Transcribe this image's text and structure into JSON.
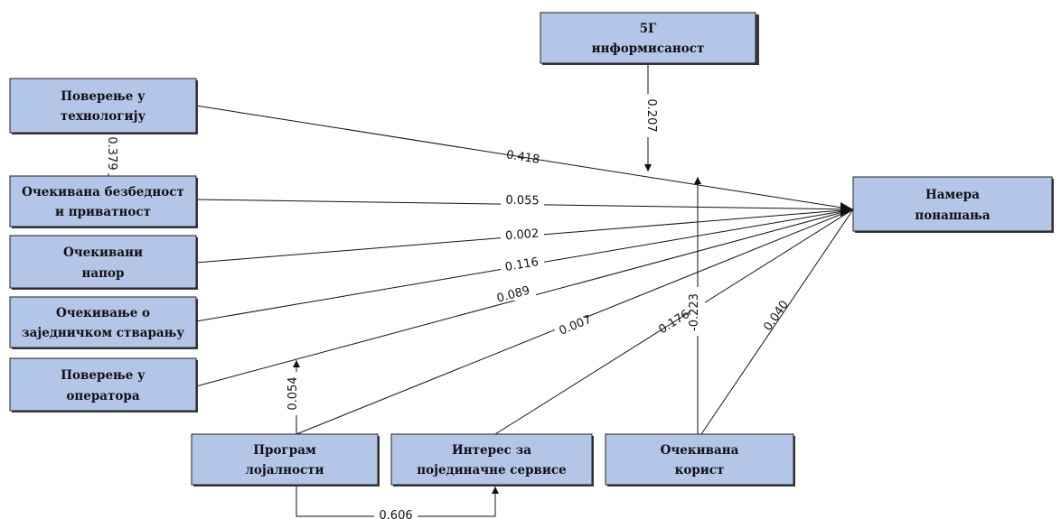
{
  "nodes": {
    "informisanost": {
      "line1": "5Г",
      "line2": "информисаност"
    },
    "povjerenje_tehnologija": {
      "line1": "Поверење у",
      "line2": "технологију"
    },
    "bezbednost": {
      "line1": "Очекивана безбедност",
      "line2": "и приватност"
    },
    "napor": {
      "line1": "Очекивани",
      "line2": "напор"
    },
    "stvaranje": {
      "line1": "Очекивање о",
      "line2": "заједничком стварању"
    },
    "povjerenje_operator": {
      "line1": "Поверење у",
      "line2": "оператора"
    },
    "lojalnost": {
      "line1": "Програм",
      "line2": "лојалности"
    },
    "interes": {
      "line1": "Интерес за",
      "line2": "појединачне сервисе"
    },
    "korist": {
      "line1": "Очекивана",
      "line2": "корист"
    },
    "namera": {
      "line1": "Намера",
      "line2": "понашања"
    }
  },
  "coefficients": {
    "tehnologija_namera": "0.418",
    "bezbednost_namera": "0.055",
    "napor_namera": "0.002",
    "stvaranje_namera": "0.116",
    "operator_namera": "0.089",
    "lojalnost_namera": "0.007",
    "interes_namera": "0.176",
    "korist_namera": "0.040",
    "informisanost_mod": "0.207",
    "korist_mod": "-0.223",
    "lojalnost_mod": "0.054",
    "tehnologija_bezbednost": "0.379",
    "lojalnost_interes": "0.606"
  }
}
